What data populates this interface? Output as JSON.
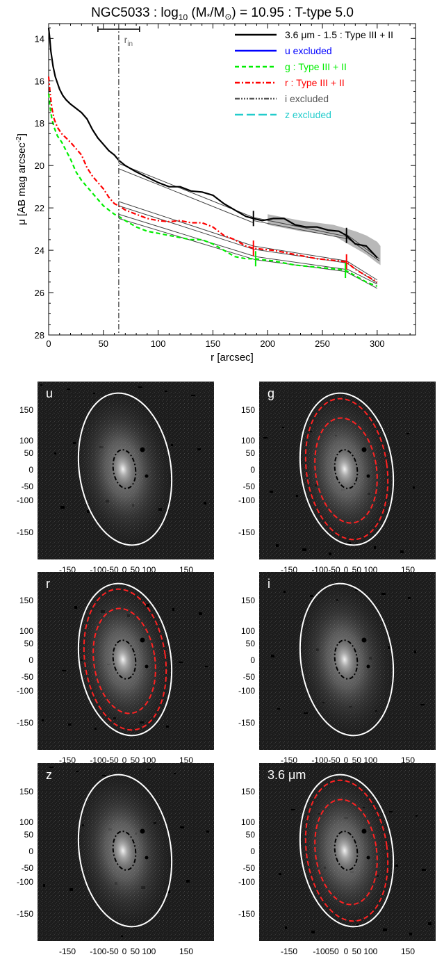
{
  "chart_data": [
    {
      "type": "line",
      "title_prefix": "NGC5033 : log",
      "title_sub": "10",
      "title_mid": " (M",
      "title_sub2": "*",
      "title_mid2": "/M",
      "title_sub3": "⊙",
      "title_suffix": ") = 10.95 : T-type 5.0",
      "xlabel": "r [arcsec]",
      "ylabel_prefix": "μ [AB mag arcsec",
      "ylabel_sup": "-2",
      "ylabel_suffix": "]",
      "xlim": [
        0,
        335
      ],
      "ylim": [
        28,
        13.3
      ],
      "y_inverted": true,
      "xticks": [
        0,
        50,
        100,
        150,
        200,
        250,
        300
      ],
      "yticks": [
        14,
        16,
        18,
        20,
        22,
        24,
        26,
        28
      ],
      "rin": {
        "label": "r",
        "label_sub": "in",
        "value": 64,
        "range": [
          45,
          83
        ]
      },
      "legend_position": "top-right",
      "legend": [
        {
          "label": "3.6 μm - 1.5 : Type III + II",
          "color": "#000000",
          "dash": ""
        },
        {
          "label": "u excluded",
          "color": "#0000ff",
          "dash": ""
        },
        {
          "label": "g : Type III + II",
          "color": "#00ee00",
          "dash": "6,4"
        },
        {
          "label": "r : Type III + II",
          "color": "#ff0000",
          "dash": "7,3,2,3"
        },
        {
          "label": "i excluded",
          "color": "#555555",
          "dash": "7,2,2,2,2,2,2,2"
        },
        {
          "label": "z excluded",
          "color": "#22cccc",
          "dash": "12,5"
        }
      ],
      "series": [
        {
          "name": "3.6 μm - 1.5",
          "color": "#000000",
          "dash": "",
          "x": [
            0,
            1,
            2,
            4,
            6,
            8,
            10,
            13,
            16,
            20,
            25,
            30,
            35,
            40,
            45,
            50,
            55,
            60,
            64,
            70,
            80,
            90,
            100,
            110,
            120,
            130,
            140,
            150,
            160,
            170,
            180,
            187,
            195,
            205,
            215,
            225,
            235,
            245,
            255,
            265,
            272,
            280,
            290,
            300
          ],
          "y": [
            13.5,
            14.0,
            14.6,
            15.3,
            15.8,
            16.1,
            16.4,
            16.7,
            16.9,
            17.1,
            17.3,
            17.5,
            17.8,
            18.3,
            18.7,
            19.0,
            19.3,
            19.5,
            19.75,
            20.0,
            20.3,
            20.55,
            20.8,
            21.0,
            21.0,
            21.2,
            21.25,
            21.4,
            21.8,
            22.1,
            22.4,
            22.5,
            22.6,
            22.5,
            22.5,
            22.8,
            22.9,
            22.9,
            23.05,
            23.1,
            23.3,
            23.7,
            23.8,
            24.35
          ]
        },
        {
          "name": "r",
          "color": "#ff0000",
          "dash": "7,3,2,3",
          "x": [
            0,
            1,
            2,
            3,
            5,
            8,
            12,
            16,
            20,
            25,
            30,
            35,
            40,
            45,
            50,
            55,
            60,
            64,
            70,
            80,
            90,
            100,
            110,
            120,
            130,
            140,
            150,
            160,
            170,
            180,
            187,
            195,
            205,
            215,
            225,
            235,
            245,
            255,
            265,
            272,
            280,
            290,
            300
          ],
          "y": [
            15.8,
            16.4,
            16.9,
            17.3,
            17.8,
            18.2,
            18.5,
            18.7,
            18.9,
            19.2,
            19.5,
            20.1,
            20.5,
            20.8,
            21.1,
            21.5,
            21.8,
            21.9,
            22.1,
            22.3,
            22.5,
            22.6,
            22.65,
            22.6,
            22.7,
            22.7,
            22.9,
            23.3,
            23.5,
            23.8,
            23.9,
            23.95,
            24.0,
            24.1,
            24.2,
            24.3,
            24.4,
            24.45,
            24.5,
            24.55,
            24.9,
            25.2,
            25.5
          ]
        },
        {
          "name": "g",
          "color": "#00ee00",
          "dash": "6,4",
          "x": [
            0,
            1,
            2,
            3,
            5,
            8,
            12,
            16,
            20,
            25,
            30,
            35,
            40,
            45,
            50,
            55,
            60,
            64,
            70,
            80,
            90,
            100,
            110,
            120,
            130,
            140,
            150,
            160,
            170,
            180,
            189,
            195,
            205,
            215,
            225,
            235,
            245,
            255,
            265,
            271,
            280,
            290,
            300
          ],
          "y": [
            16.6,
            17.1,
            17.5,
            17.8,
            18.2,
            18.6,
            18.9,
            19.3,
            19.7,
            20.3,
            20.7,
            21.0,
            21.3,
            21.6,
            21.9,
            22.1,
            22.3,
            22.4,
            22.6,
            22.9,
            23.1,
            23.2,
            23.3,
            23.4,
            23.5,
            23.5,
            23.7,
            24.0,
            24.3,
            24.4,
            24.4,
            24.45,
            24.5,
            24.6,
            24.7,
            24.75,
            24.8,
            24.85,
            24.9,
            24.95,
            25.2,
            25.5,
            25.7
          ]
        }
      ],
      "breaks": [
        {
          "x": 187,
          "y": 22.5,
          "color": "#000000"
        },
        {
          "x": 272,
          "y": 23.3,
          "color": "#000000"
        },
        {
          "x": 187,
          "y": 23.9,
          "color": "#ff0000"
        },
        {
          "x": 272,
          "y": 24.55,
          "color": "#ff0000"
        },
        {
          "x": 189,
          "y": 24.4,
          "color": "#00ee00"
        },
        {
          "x": 271,
          "y": 24.95,
          "color": "#00ee00"
        }
      ],
      "fits": [
        {
          "x": [
            64,
            187
          ],
          "y": [
            19.9,
            22.45
          ]
        },
        {
          "x": [
            64,
            187
          ],
          "y": [
            20.15,
            22.7
          ]
        },
        {
          "x": [
            187,
            272
          ],
          "y": [
            22.45,
            23.35
          ]
        },
        {
          "x": [
            187,
            272
          ],
          "y": [
            22.6,
            23.45
          ]
        },
        {
          "x": [
            272,
            302
          ],
          "y": [
            23.25,
            24.4
          ]
        },
        {
          "x": [
            272,
            302
          ],
          "y": [
            23.4,
            24.5
          ]
        },
        {
          "x": [
            64,
            187
          ],
          "y": [
            21.7,
            23.8
          ]
        },
        {
          "x": [
            64,
            187
          ],
          "y": [
            21.9,
            23.95
          ]
        },
        {
          "x": [
            187,
            272
          ],
          "y": [
            23.8,
            24.5
          ]
        },
        {
          "x": [
            187,
            272
          ],
          "y": [
            23.95,
            24.6
          ]
        },
        {
          "x": [
            272,
            300
          ],
          "y": [
            24.5,
            25.4
          ]
        },
        {
          "x": [
            272,
            300
          ],
          "y": [
            24.6,
            25.55
          ]
        },
        {
          "x": [
            64,
            189
          ],
          "y": [
            22.3,
            24.3
          ]
        },
        {
          "x": [
            64,
            189
          ],
          "y": [
            22.5,
            24.45
          ]
        },
        {
          "x": [
            189,
            271
          ],
          "y": [
            24.3,
            24.9
          ]
        },
        {
          "x": [
            189,
            271
          ],
          "y": [
            24.45,
            25.0
          ]
        },
        {
          "x": [
            271,
            300
          ],
          "y": [
            24.85,
            25.6
          ]
        },
        {
          "x": [
            271,
            300
          ],
          "y": [
            25.0,
            25.8
          ]
        }
      ],
      "error_band": {
        "x": [
          200,
          230,
          260,
          280,
          290,
          300,
          303
        ],
        "y_low": [
          22.3,
          22.6,
          22.8,
          23.1,
          23.3,
          23.6,
          23.8
        ],
        "y_high": [
          22.8,
          23.1,
          23.3,
          23.9,
          24.2,
          24.6,
          24.7
        ]
      }
    }
  ],
  "panels": [
    {
      "label": "u",
      "bands": []
    },
    {
      "label": "g",
      "bands": [
        "inner",
        "outer"
      ]
    },
    {
      "label": "r",
      "bands": [
        "inner",
        "outer"
      ]
    },
    {
      "label": "i",
      "bands": []
    },
    {
      "label": "z",
      "bands": []
    },
    {
      "label": "3.6 μm",
      "bands": [
        "inner",
        "outer"
      ]
    }
  ],
  "panel_axes": {
    "yticks": [
      "150",
      "100",
      "50",
      "0",
      "-50",
      "-100",
      "-150"
    ],
    "xticks": [
      "-150",
      "-100-50",
      "0",
      "50 100",
      "150"
    ],
    "xticks_last": [
      "-150",
      "-10050",
      "0",
      "50 100",
      "150"
    ]
  },
  "colors": {
    "image_bg": "#1a1a1a",
    "ellipse_outer": "#ffffff",
    "ellipse_break": "#ff2222",
    "ellipse_inner": "#000000"
  }
}
